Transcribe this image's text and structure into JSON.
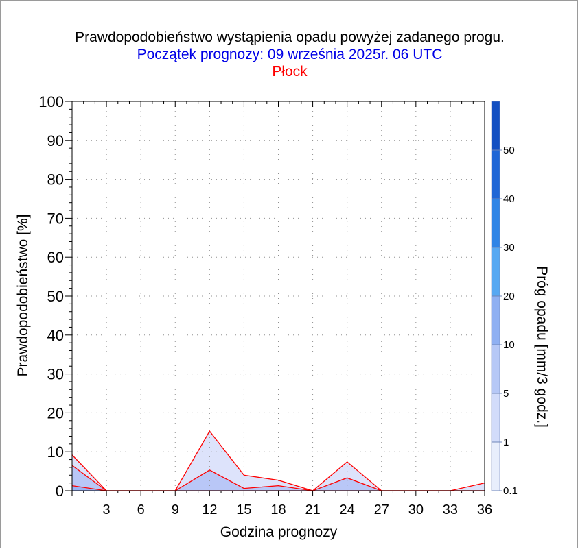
{
  "chart_data": {
    "type": "area",
    "title": "Prawdopodobieństwo wystąpienia opadu powyżej zadanego progu.",
    "subtitle": "Początek prognozy: 09 września 2025r. 06 UTC",
    "location": "Płock",
    "xlabel": "Godzina prognozy",
    "ylabel": "Prawdopodobieństwo [%]",
    "colorbar_label": "Próg opadu [mm/3 godz.]",
    "xlim": [
      0,
      36
    ],
    "ylim": [
      0,
      100
    ],
    "x_ticks": [
      "3",
      "6",
      "9",
      "12",
      "15",
      "18",
      "21",
      "24",
      "27",
      "30",
      "33",
      "36"
    ],
    "y_ticks": [
      "0",
      "10",
      "20",
      "30",
      "40",
      "50",
      "60",
      "70",
      "80",
      "90",
      "100"
    ],
    "colorbar_ticks": [
      "0.1",
      "1",
      "5",
      "10",
      "20",
      "30",
      "40",
      "50"
    ],
    "colorbar_colors": [
      "#e8eefc",
      "#d2dcfa",
      "#b6c8f6",
      "#8fb0f2",
      "#57a8f2",
      "#2f84e6",
      "#1f66d6",
      "#134fc2",
      "#0b3aa4"
    ],
    "x": [
      0,
      3,
      6,
      9,
      12,
      15,
      18,
      21,
      24,
      27,
      30,
      33,
      36
    ],
    "series": [
      {
        "threshold": "0.1",
        "color": "#dde3fb",
        "values": [
          9.2,
          0,
          0,
          0,
          15.3,
          4.0,
          2.7,
          0,
          7.4,
          0,
          0,
          0,
          2.0
        ]
      },
      {
        "threshold": "1",
        "color": "#b9c7f7",
        "values": [
          6.5,
          0,
          0,
          0,
          5.3,
          0.6,
          1.3,
          0,
          3.3,
          0,
          0,
          0,
          0
        ]
      },
      {
        "threshold": "5",
        "color": "#9bb2f3",
        "values": [
          1.3,
          0,
          0,
          0,
          0,
          0,
          0,
          0,
          0,
          0,
          0,
          0,
          0
        ]
      }
    ],
    "line_color": "#ff0000",
    "grid": true
  }
}
